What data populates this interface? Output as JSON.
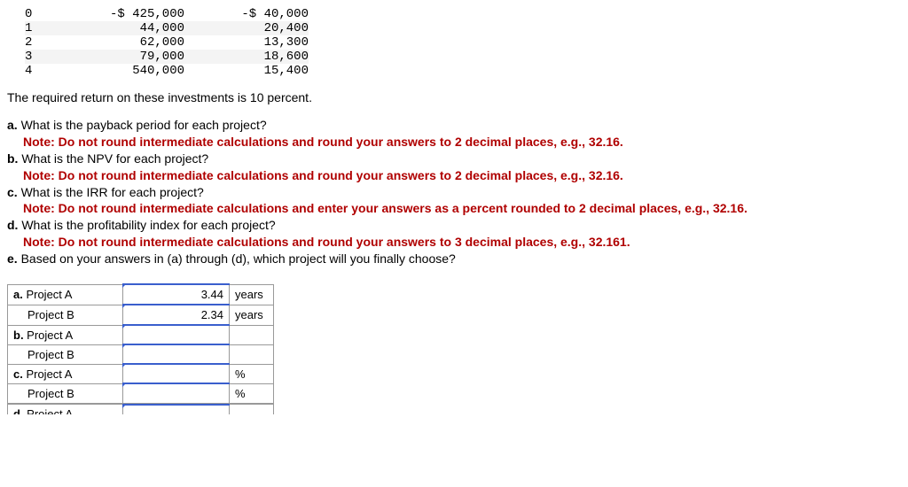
{
  "cashflows": {
    "rows": [
      {
        "year": "0",
        "a": "-$ 425,000",
        "b": "-$ 40,000",
        "alt": false
      },
      {
        "year": "1",
        "a": "44,000",
        "b": "20,400",
        "alt": true
      },
      {
        "year": "2",
        "a": "62,000",
        "b": "13,300",
        "alt": false
      },
      {
        "year": "3",
        "a": "79,000",
        "b": "18,600",
        "alt": true
      },
      {
        "year": "4",
        "a": "540,000",
        "b": "15,400",
        "alt": false
      }
    ]
  },
  "required_return_text": "The required return on these investments is 10 percent.",
  "questions": {
    "a_label": "a.",
    "a_text": " What is the payback period for each project?",
    "a_note": "Note: Do not round intermediate calculations and round your answers to 2 decimal places, e.g., 32.16.",
    "b_label": "b.",
    "b_text": " What is the NPV for each project?",
    "b_note": "Note: Do not round intermediate calculations and round your answers to 2 decimal places, e.g., 32.16.",
    "c_label": "c.",
    "c_text": " What is the IRR for each project?",
    "c_note": "Note: Do not round intermediate calculations and enter your answers as a percent rounded to 2 decimal places, e.g., 32.16.",
    "d_label": "d.",
    "d_text": " What is the profitability index for each project?",
    "d_note": "Note: Do not round intermediate calculations and round your answers to 3 decimal places, e.g., 32.161.",
    "e_label": "e.",
    "e_text": " Based on your answers in (a) through (d), which project will you finally choose?"
  },
  "answers": {
    "rows": [
      {
        "label_bold": "a.",
        "label": " Project A",
        "value": "3.44",
        "unit": "years"
      },
      {
        "label_bold": "",
        "label": "Project B",
        "value": "2.34",
        "unit": "years"
      },
      {
        "label_bold": "b.",
        "label": " Project A",
        "value": "",
        "unit": ""
      },
      {
        "label_bold": "",
        "label": "Project B",
        "value": "",
        "unit": ""
      },
      {
        "label_bold": "c.",
        "label": " Project A",
        "value": "",
        "unit": "%"
      },
      {
        "label_bold": "",
        "label": "Project B",
        "value": "",
        "unit": "%"
      }
    ],
    "cutoff_label_bold": "d.",
    "cutoff_label": " Project A"
  }
}
